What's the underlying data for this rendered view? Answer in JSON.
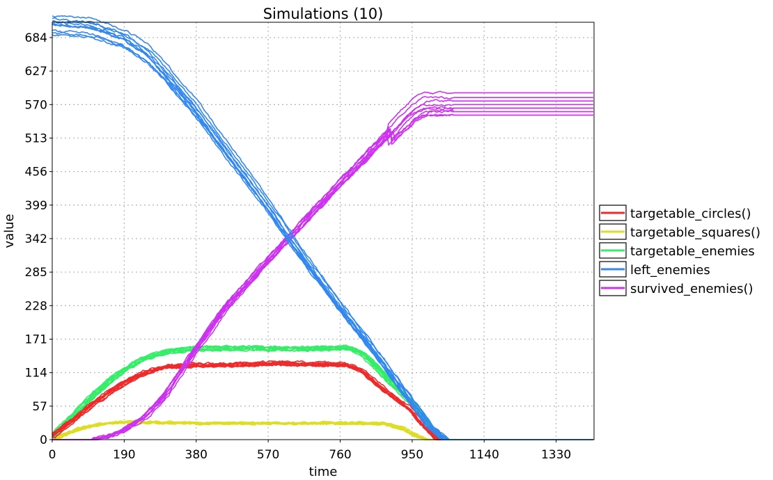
{
  "chart_data": {
    "type": "line",
    "title": "Simulations (10)",
    "xlabel": "time",
    "ylabel": "value",
    "xlim": [
      0,
      1430
    ],
    "ylim": [
      0,
      710
    ],
    "x_ticks": [
      0,
      190,
      380,
      570,
      760,
      950,
      1140,
      1330
    ],
    "y_ticks": [
      0,
      57,
      114,
      171,
      228,
      285,
      342,
      399,
      456,
      513,
      570,
      627,
      684
    ],
    "grid": true,
    "legend_position": "right",
    "runs": 10,
    "series": [
      {
        "name": "targetable_circles()",
        "color": "#ee2a2a",
        "points": [
          [
            0,
            5
          ],
          [
            60,
            35
          ],
          [
            120,
            65
          ],
          [
            180,
            92
          ],
          [
            240,
            112
          ],
          [
            300,
            124
          ],
          [
            400,
            127
          ],
          [
            500,
            128
          ],
          [
            600,
            130
          ],
          [
            700,
            129
          ],
          [
            780,
            128
          ],
          [
            820,
            118
          ],
          [
            860,
            95
          ],
          [
            900,
            75
          ],
          [
            950,
            50
          ],
          [
            990,
            20
          ],
          [
            1020,
            0
          ],
          [
            1430,
            0
          ]
        ]
      },
      {
        "name": "targetable_squares()",
        "color": "#dddd22",
        "points": [
          [
            0,
            0
          ],
          [
            40,
            10
          ],
          [
            80,
            20
          ],
          [
            130,
            27
          ],
          [
            200,
            30
          ],
          [
            300,
            29
          ],
          [
            400,
            28
          ],
          [
            500,
            28
          ],
          [
            600,
            28
          ],
          [
            700,
            28
          ],
          [
            800,
            28
          ],
          [
            880,
            27
          ],
          [
            920,
            20
          ],
          [
            960,
            6
          ],
          [
            990,
            0
          ],
          [
            1430,
            0
          ]
        ]
      },
      {
        "name": "targetable_enemies",
        "color": "#33ee66",
        "points": [
          [
            0,
            5
          ],
          [
            60,
            45
          ],
          [
            120,
            83
          ],
          [
            180,
            115
          ],
          [
            240,
            138
          ],
          [
            300,
            150
          ],
          [
            380,
            155
          ],
          [
            500,
            156
          ],
          [
            600,
            155
          ],
          [
            700,
            155
          ],
          [
            780,
            156
          ],
          [
            820,
            146
          ],
          [
            860,
            120
          ],
          [
            900,
            92
          ],
          [
            950,
            62
          ],
          [
            990,
            28
          ],
          [
            1020,
            5
          ],
          [
            1040,
            0
          ],
          [
            1430,
            0
          ]
        ]
      },
      {
        "name": "left_enemies",
        "color": "#3388ee",
        "points": [
          [
            0,
            705
          ],
          [
            100,
            700
          ],
          [
            190,
            680
          ],
          [
            250,
            655
          ],
          [
            300,
            620
          ],
          [
            380,
            560
          ],
          [
            460,
            490
          ],
          [
            570,
            395
          ],
          [
            650,
            320
          ],
          [
            760,
            225
          ],
          [
            850,
            150
          ],
          [
            950,
            63
          ],
          [
            1000,
            20
          ],
          [
            1040,
            0
          ],
          [
            1430,
            0
          ]
        ]
      },
      {
        "name": "survived_enemies()",
        "color": "#cc33ee",
        "points": [
          [
            0,
            0
          ],
          [
            110,
            0
          ],
          [
            150,
            5
          ],
          [
            190,
            15
          ],
          [
            250,
            40
          ],
          [
            300,
            75
          ],
          [
            380,
            150
          ],
          [
            460,
            222
          ],
          [
            570,
            300
          ],
          [
            650,
            355
          ],
          [
            760,
            430
          ],
          [
            850,
            490
          ],
          [
            960,
            562
          ],
          [
            990,
            572
          ],
          [
            1430,
            572
          ]
        ]
      }
    ],
    "final_values": {
      "survived_enemies()": [
        552,
        558,
        564,
        570,
        576,
        582,
        590
      ]
    }
  }
}
